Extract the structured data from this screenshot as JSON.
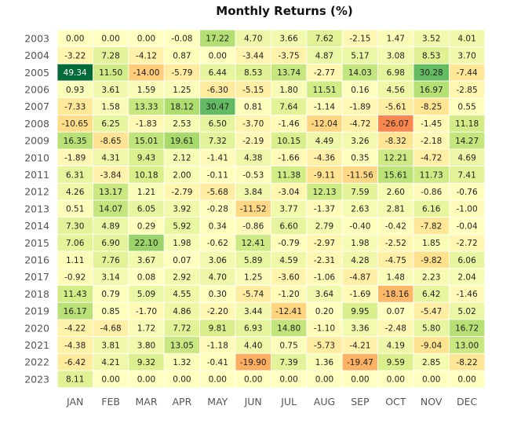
{
  "chart_data": {
    "type": "heatmap",
    "title": "Monthly Returns (%)",
    "xlabel": "",
    "ylabel": "",
    "months": [
      "JAN",
      "FEB",
      "MAR",
      "APR",
      "MAY",
      "JUN",
      "JUL",
      "AUG",
      "SEP",
      "OCT",
      "NOV",
      "DEC"
    ],
    "years": [
      "2003",
      "2004",
      "2005",
      "2006",
      "2007",
      "2008",
      "2009",
      "2010",
      "2011",
      "2012",
      "2013",
      "2014",
      "2015",
      "2016",
      "2017",
      "2018",
      "2019",
      "2020",
      "2021",
      "2022",
      "2023"
    ],
    "values": [
      [
        "0.00",
        "0.00",
        "0.00",
        "-0.08",
        "17.22",
        "4.70",
        "3.66",
        "7.62",
        "-2.15",
        "1.47",
        "3.52",
        "4.01"
      ],
      [
        "-3.22",
        "7.28",
        "-4.12",
        "0.87",
        "0.00",
        "-3.44",
        "-3.75",
        "4.87",
        "5.17",
        "3.08",
        "8.53",
        "3.70"
      ],
      [
        "49.34",
        "11.50",
        "-14.00",
        "-5.79",
        "6.44",
        "8.53",
        "13.74",
        "-2.77",
        "14.03",
        "6.98",
        "30.28",
        "-7.44"
      ],
      [
        "0.93",
        "3.61",
        "1.59",
        "1.25",
        "-6.30",
        "-5.15",
        "1.80",
        "11.51",
        "0.16",
        "4.56",
        "16.97",
        "-2.85"
      ],
      [
        "-7.33",
        "1.58",
        "13.33",
        "18.12",
        "30.47",
        "0.81",
        "7.64",
        "-1.14",
        "-1.89",
        "-5.61",
        "-8.25",
        "0.55"
      ],
      [
        "-10.65",
        "6.25",
        "-1.83",
        "2.53",
        "6.50",
        "-3.70",
        "-1.46",
        "-12.04",
        "-4.72",
        "-26.07",
        "-1.45",
        "11.18"
      ],
      [
        "16.35",
        "-8.65",
        "15.01",
        "19.61",
        "7.32",
        "-2.19",
        "10.15",
        "4.49",
        "3.26",
        "-8.32",
        "-2.18",
        "14.27"
      ],
      [
        "-1.89",
        "4.31",
        "9.43",
        "2.12",
        "-1.41",
        "4.38",
        "-1.66",
        "-4.36",
        "0.35",
        "12.21",
        "-4.72",
        "4.69"
      ],
      [
        "6.31",
        "-3.84",
        "10.18",
        "2.00",
        "-0.11",
        "-0.53",
        "11.38",
        "-9.11",
        "-11.56",
        "15.61",
        "11.73",
        "7.41"
      ],
      [
        "4.26",
        "13.17",
        "1.21",
        "-2.79",
        "-5.68",
        "3.84",
        "-3.04",
        "12.13",
        "7.59",
        "2.60",
        "-0.86",
        "-0.76"
      ],
      [
        "0.51",
        "14.07",
        "6.05",
        "3.92",
        "-0.28",
        "-11.52",
        "3.77",
        "-1.37",
        "2.63",
        "2.81",
        "6.16",
        "-1.00"
      ],
      [
        "7.30",
        "4.89",
        "0.29",
        "5.92",
        "0.34",
        "-0.86",
        "6.60",
        "2.79",
        "-0.40",
        "-0.42",
        "-7.82",
        "-0.04"
      ],
      [
        "7.06",
        "6.90",
        "22.10",
        "1.98",
        "-0.62",
        "12.41",
        "-0.79",
        "-2.97",
        "1.98",
        "-2.52",
        "1.85",
        "-2.72"
      ],
      [
        "1.11",
        "7.76",
        "3.67",
        "0.07",
        "3.06",
        "5.89",
        "4.59",
        "-2.31",
        "4.28",
        "-4.75",
        "-9.82",
        "6.06"
      ],
      [
        "-0.92",
        "3.14",
        "0.08",
        "2.92",
        "4.70",
        "1.25",
        "-3.60",
        "-1.06",
        "-4.87",
        "1.48",
        "2.23",
        "2.04"
      ],
      [
        "11.43",
        "0.79",
        "5.09",
        "4.55",
        "0.30",
        "-5.74",
        "-1.20",
        "3.64",
        "-1.69",
        "-18.16",
        "6.42",
        "-1.46"
      ],
      [
        "16.17",
        "0.85",
        "-1.70",
        "4.86",
        "-2.20",
        "3.44",
        "-12.41",
        "0.20",
        "9.95",
        "0.07",
        "-5.47",
        "5.02"
      ],
      [
        "-4.22",
        "-4.68",
        "1.72",
        "7.72",
        "9.81",
        "6.93",
        "14.80",
        "-1.10",
        "3.36",
        "-2.48",
        "5.80",
        "16.72"
      ],
      [
        "-4.38",
        "3.81",
        "3.80",
        "13.05",
        "-1.18",
        "4.40",
        "0.75",
        "-5.73",
        "-4.21",
        "4.19",
        "-9.04",
        "13.00"
      ],
      [
        "-6.42",
        "4.21",
        "9.32",
        "1.32",
        "-0.41",
        "-19.90",
        "7.39",
        "1.36",
        "-19.47",
        "9.59",
        "2.85",
        "-8.22"
      ],
      [
        "8.11",
        "0.00",
        "0.00",
        "0.00",
        "0.00",
        "0.00",
        "0.00",
        "0.00",
        "0.00",
        "0.00",
        "0.00",
        "0.00"
      ]
    ],
    "colormap": "RdYlGn",
    "color_range": [
      -50,
      50
    ],
    "legend": "none",
    "grid": false
  }
}
